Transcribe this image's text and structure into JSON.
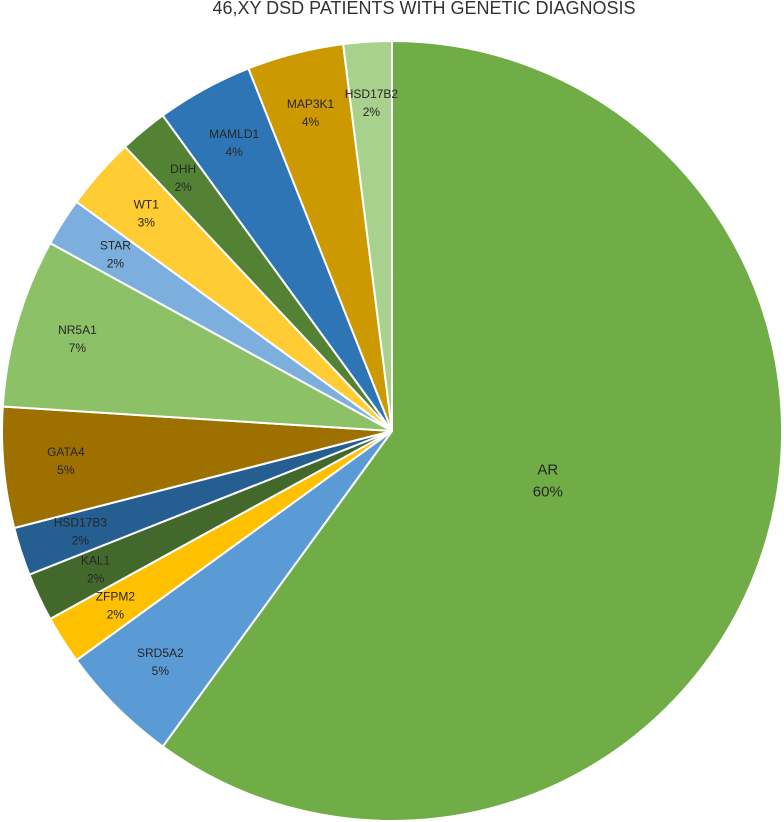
{
  "chart_data": {
    "type": "pie",
    "title": "46,XY DSD PATIENTS WITH GENETIC DIAGNOSIS",
    "categories": [
      "AR",
      "SRD5A2",
      "ZFPM2",
      "KAL1",
      "HSD17B3",
      "GATA4",
      "NR5A1",
      "STAR",
      "WT1",
      "DHH",
      "MAMLD1",
      "MAP3K1",
      "HSD17B2"
    ],
    "values": [
      60,
      5,
      2,
      2,
      2,
      5,
      7,
      2,
      3,
      2,
      4,
      4,
      2
    ],
    "value_labels": [
      "60%",
      "5%",
      "2%",
      "2%",
      "2%",
      "5%",
      "7%",
      "2%",
      "3%",
      "2%",
      "4%",
      "4%",
      "2%"
    ],
    "colors": [
      "#70ad47",
      "#5b9bd5",
      "#ffc000",
      "#43682b",
      "#255e91",
      "#9e7000",
      "#8cc168",
      "#7cafdd",
      "#ffcd33",
      "#548235",
      "#2e75b6",
      "#cc9900",
      "#a9d18e"
    ]
  }
}
